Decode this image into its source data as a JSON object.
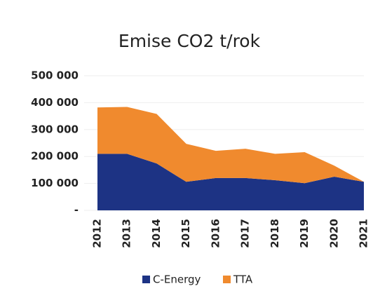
{
  "chart_data": {
    "type": "area",
    "stacked": true,
    "title": "Emise CO2 t/rok",
    "x": [
      "2012",
      "2013",
      "2014",
      "2015",
      "2016",
      "2017",
      "2018",
      "2019",
      "2020",
      "2021"
    ],
    "series": [
      {
        "name": "C-Energy",
        "color": "#1d3384",
        "values": [
          210000,
          210000,
          174000,
          106000,
          120000,
          120000,
          112000,
          101000,
          125000,
          106000
        ]
      },
      {
        "name": "TTA",
        "color": "#f08a2e",
        "values": [
          172000,
          174000,
          184000,
          141000,
          101000,
          109000,
          98000,
          115000,
          41000,
          0
        ]
      }
    ],
    "ylim": [
      0,
      500000
    ],
    "yticks": [
      {
        "value": 0,
        "label": "-"
      },
      {
        "value": 100000,
        "label": "100 000"
      },
      {
        "value": 200000,
        "label": "200 000"
      },
      {
        "value": 300000,
        "label": "300 000"
      },
      {
        "value": 400000,
        "label": "400 000"
      },
      {
        "value": 500000,
        "label": "500 000"
      }
    ],
    "grid": true,
    "legend": "bottom"
  }
}
